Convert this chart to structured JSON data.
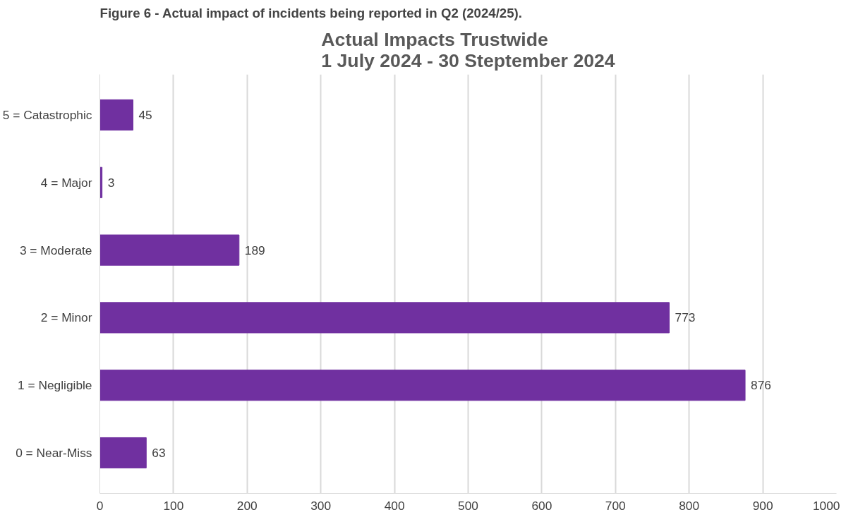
{
  "chart_data": {
    "type": "bar",
    "orientation": "horizontal",
    "title": "Actual Impacts Trustwide\n1 July 2024 - 30 Steptember 2024",
    "annotations": [
      "Figure 6 - Actual impact of incidents being reported in Q2 (2024/25)."
    ],
    "categories": [
      "5 = Catastrophic",
      "4 = Major",
      "3 = Moderate",
      "2 = Minor",
      "1 = Negligible",
      "0 = Near-Miss"
    ],
    "values": [
      45,
      3,
      189,
      773,
      876,
      63
    ],
    "color": "#7030a0",
    "xlim": [
      0,
      1000
    ],
    "xticks": [
      0,
      100,
      200,
      300,
      400,
      500,
      600,
      700,
      800,
      900,
      1000
    ],
    "grid": "x",
    "data_labels": true
  }
}
